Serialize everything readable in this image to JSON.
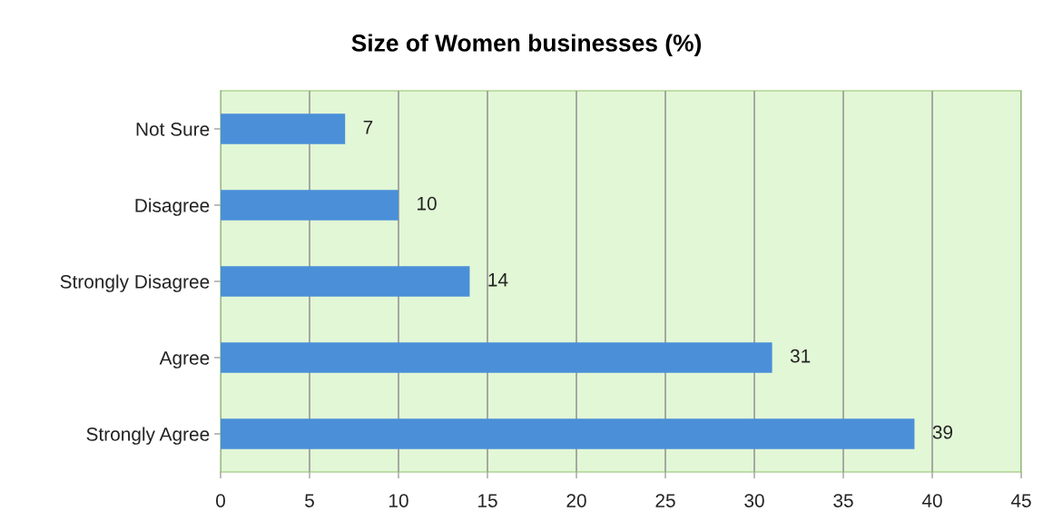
{
  "chart_data": {
    "type": "bar",
    "orientation": "horizontal",
    "title": "Size of Women businesses (%)",
    "categories": [
      "Not Sure",
      "Disagree",
      "Strongly Disagree",
      "Agree",
      "Strongly Agree"
    ],
    "values": [
      7,
      10,
      14,
      31,
      39
    ],
    "color": "#4a8fd8",
    "xlim": [
      0,
      45
    ],
    "xticks": [
      0,
      5,
      10,
      15,
      20,
      25,
      30,
      35,
      40,
      45
    ],
    "grid": "x",
    "data_labels": true,
    "legend": false
  }
}
